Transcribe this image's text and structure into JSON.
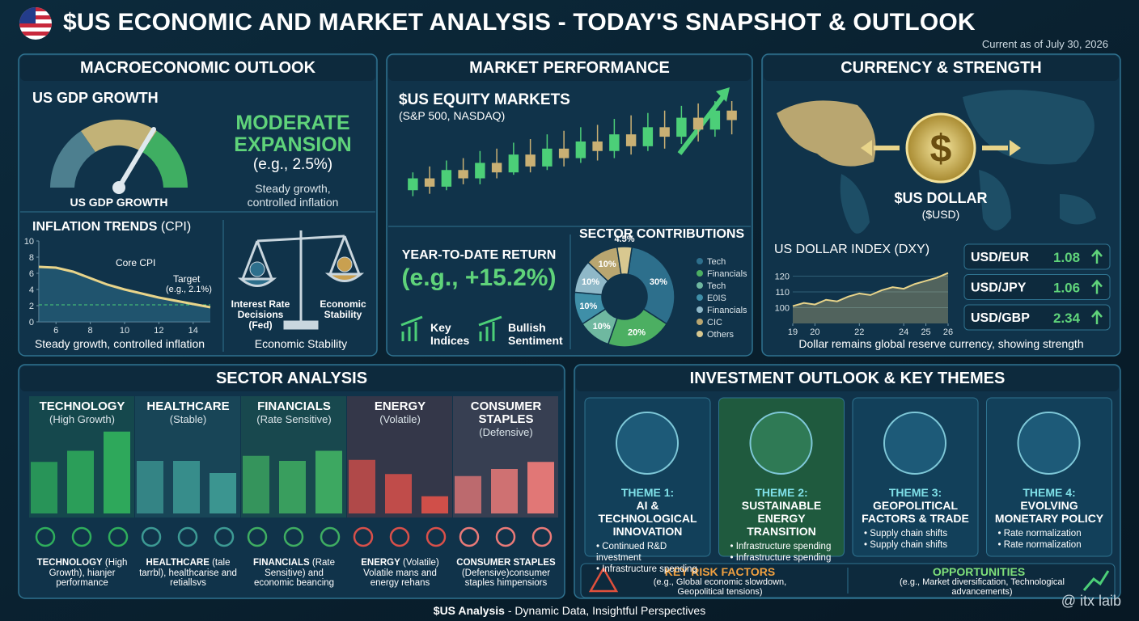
{
  "header": {
    "title": "$US ECONOMIC AND MARKET ANALYSIS - TODAY'S SNAPSHOT & OUTLOOK",
    "subtitle": "Current as of July 30, 2026"
  },
  "macro": {
    "title": "MACROECONOMIC OUTLOOK",
    "gdp_title": "US GDP GROWTH",
    "gauge_label": "US GDP GROWTH",
    "status": "MODERATE EXPANSION",
    "example": "(e.g., 2.5%)",
    "note": "Steady growth, controlled inflation",
    "inflation": {
      "title": "INFLATION TRENDS",
      "title_suffix": "(CPI)",
      "x": [
        5,
        6,
        7,
        8,
        9,
        10,
        11,
        12,
        13,
        14,
        15
      ],
      "values": [
        6.8,
        6.7,
        6.2,
        5.4,
        4.6,
        4.0,
        3.5,
        3.0,
        2.6,
        2.2,
        1.8
      ],
      "xlim": [
        5,
        15
      ],
      "ylim": [
        0,
        10
      ],
      "xticks": [
        6,
        8,
        10,
        12,
        14
      ],
      "yticks": [
        0,
        2,
        4,
        6,
        8,
        10
      ],
      "line_label": "Core CPI",
      "target_label": "Target",
      "target_note": "(e.g., 2.1%)",
      "target": 2.1,
      "color": "#e8d48a",
      "caption": "Steady growth, controlled inflation"
    },
    "scale": {
      "left": "Interest Rate Decisions (Fed)",
      "right": "Economic Stability",
      "caption": "Economic Stability"
    }
  },
  "market": {
    "title": "MARKET PERFORMANCE",
    "equity_title": "$US EQUITY MARKETS",
    "equity_sub": "(S&P 500, NASDAQ)",
    "candles": [
      [
        20,
        25,
        35,
        40
      ],
      [
        22,
        35,
        28,
        45
      ],
      [
        25,
        28,
        42,
        50
      ],
      [
        30,
        42,
        35,
        52
      ],
      [
        30,
        35,
        48,
        58
      ],
      [
        35,
        48,
        40,
        60
      ],
      [
        38,
        40,
        55,
        65
      ],
      [
        40,
        55,
        45,
        68
      ],
      [
        42,
        45,
        60,
        72
      ],
      [
        45,
        60,
        52,
        75
      ],
      [
        48,
        52,
        66,
        78
      ],
      [
        50,
        66,
        58,
        80
      ],
      [
        52,
        58,
        72,
        85
      ],
      [
        55,
        72,
        62,
        88
      ],
      [
        58,
        62,
        78,
        90
      ],
      [
        60,
        78,
        70,
        92
      ],
      [
        64,
        70,
        86,
        96
      ],
      [
        66,
        86,
        76,
        98
      ],
      [
        70,
        76,
        92,
        100
      ],
      [
        72,
        92,
        84,
        100
      ]
    ],
    "candle_ylim": [
      0,
      100
    ],
    "up_color": "#4ccf78",
    "down_color": "#c9b074",
    "ytd_title": "YEAR-TO-DATE RETURN",
    "ytd_value": "(e.g., +15.2%)",
    "key_indices": "Key Indices",
    "bullish": "Bullish Sentiment",
    "sectors": {
      "title": "SECTOR CONTRIBUTIONS",
      "values": [
        30,
        20,
        10,
        10,
        10,
        10,
        4.5
      ],
      "value_labels": [
        "30%",
        "20%",
        "10%",
        "10%",
        "10%",
        "10%",
        "4.5%"
      ],
      "names": [
        "Tech",
        "Financials",
        "Tech",
        "E0IS",
        "Financials",
        "CIC",
        "Others"
      ],
      "colors": [
        "#2d6f8c",
        "#4caf62",
        "#6fb8a0",
        "#3f8fa8",
        "#8fb8c8",
        "#b9a670",
        "#d8c890"
      ]
    }
  },
  "currency": {
    "title": "CURRENCY & STRENGTH",
    "dollar": "$US DOLLAR",
    "dollar_sub": "($USD)",
    "dxy": {
      "title": "US DOLLAR INDEX (DXY)",
      "x": [
        19,
        19.5,
        20,
        20.5,
        21,
        21.5,
        22,
        22.5,
        23,
        23.5,
        24,
        24.5,
        25,
        25.5,
        26
      ],
      "values": [
        101,
        103,
        102,
        105,
        104,
        107,
        109,
        108,
        111,
        113,
        112,
        115,
        117,
        119,
        122
      ],
      "xlim": [
        19,
        26
      ],
      "ylim": [
        90,
        130
      ],
      "xticks": [
        19,
        20,
        22,
        24,
        25,
        26
      ],
      "yticks": [
        100,
        110,
        120
      ],
      "color": "#e8d48a"
    },
    "caption": "Dollar remains global reserve currency, showing strength",
    "fx": [
      {
        "pair": "USD/EUR",
        "value": "1.08"
      },
      {
        "pair": "USD/JPY",
        "value": "1.06"
      },
      {
        "pair": "USD/GBP",
        "value": "2.34"
      }
    ]
  },
  "sector_analysis": {
    "title": "SECTOR ANALYSIS",
    "ylim": [
      0,
      100
    ],
    "sectors": [
      {
        "name": "TECHNOLOGY",
        "sub": "(High Growth)",
        "color": "#2fae5c",
        "values": [
          51,
          62,
          81
        ],
        "caption_title": "TECHNOLOGY",
        "caption": "(High Growth), hianjer performance"
      },
      {
        "name": "HEALTHCARE",
        "sub": "(Stable)",
        "color": "#3d9a94",
        "values": [
          52,
          52,
          40
        ],
        "caption_title": "HEALTHCARE",
        "caption": "(tale tarrbl), healthcarise and retiallsvs"
      },
      {
        "name": "FINANCIALS",
        "sub": "(Rate Sensitive)",
        "color": "#3fae62",
        "values": [
          57,
          52,
          62
        ],
        "caption_title": "FINANCIALS",
        "caption": "(Rate Sensitive) and economic beancing"
      },
      {
        "name": "ENERGY",
        "sub": "(Volatile)",
        "color": "#d9504a",
        "values": [
          53,
          39,
          17
        ],
        "caption_title": "ENERGY",
        "caption": "(Volatile) Volatile mans and energy rehans"
      },
      {
        "name": "CONSUMER STAPLES",
        "sub": "(Defensive)",
        "color": "#ea7a78",
        "values": [
          37,
          44,
          51
        ],
        "caption_title": "CONSUMER STAPLES",
        "caption": "(Defensive)consumer staples himpensiors"
      }
    ]
  },
  "investment": {
    "title": "INVESTMENT OUTLOOK & KEY THEMES",
    "themes": [
      {
        "label": "THEME 1:",
        "title": "AI & TECHNOLOGICAL INNOVATION",
        "bullets": [
          "Continued R&D investment",
          "Infrastructure spending"
        ]
      },
      {
        "label": "THEME 2:",
        "title": "SUSTAINABLE ENERGY TRANSITION",
        "bullets": [
          "Infrastructure spending",
          "Infrastructure spending"
        ]
      },
      {
        "label": "THEME 3:",
        "title": "GEOPOLITICAL FACTORS & TRADE",
        "bullets": [
          "Supply chain shifts",
          "Supply chain shifts"
        ]
      },
      {
        "label": "THEME 4:",
        "title": "EVOLVING MONETARY POLICY",
        "bullets": [
          "Rate normalization",
          "Rate normalization"
        ]
      }
    ],
    "risk_title": "KEY RISK FACTORS",
    "risk_note": "(e.g., Global economic slowdown, Geopolitical tensions)",
    "opp_title": "OPPORTUNITIES",
    "opp_note": "(e.g., Market diversification, Technological advancements)"
  },
  "footer": {
    "bold": "$US Analysis",
    "rest": " - Dynamic Data, Insightful Perspectives",
    "watermark": "@ itx laib"
  }
}
